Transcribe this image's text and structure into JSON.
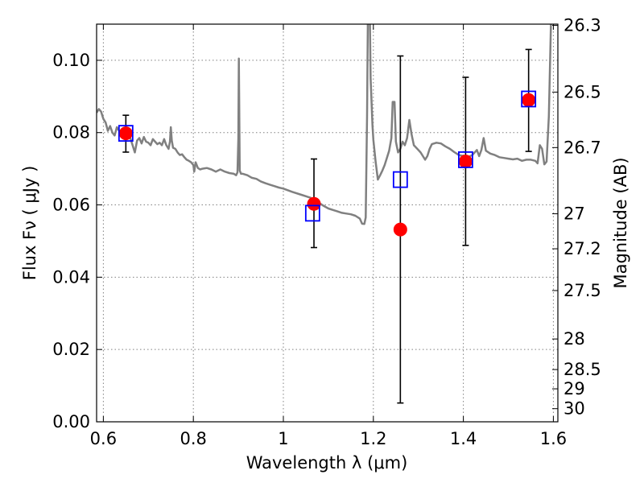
{
  "chart_data": {
    "type": "scatter",
    "xlabel": "Wavelength  λ (μm)",
    "ylabel": "Flux  Fν  ( μJy )",
    "y2label": "Magnitude (AB)",
    "xlim": [
      0.585,
      1.61
    ],
    "ylim": [
      0.0,
      0.11
    ],
    "grid": true,
    "grid_style": "dotted",
    "x_ticks": [
      0.6,
      0.8,
      1.0,
      1.2,
      1.4,
      1.6
    ],
    "x_tick_labels": [
      "0.6",
      "0.8",
      "1",
      "1.2",
      "1.4",
      "1.6"
    ],
    "y_ticks": [
      0.0,
      0.02,
      0.04,
      0.06,
      0.08,
      0.1
    ],
    "y_tick_labels": [
      "0.00",
      "0.02",
      "0.04",
      "0.06",
      "0.08",
      "0.10"
    ],
    "y2_ticks": [
      {
        "label": "26.3",
        "mag": 26.3
      },
      {
        "label": "26.5",
        "mag": 26.5
      },
      {
        "label": "26.7",
        "mag": 26.7
      },
      {
        "label": "27",
        "mag": 27.0
      },
      {
        "label": "27.2",
        "mag": 27.2
      },
      {
        "label": "27.5",
        "mag": 27.5
      },
      {
        "label": "28",
        "mag": 28.0
      },
      {
        "label": "28.5",
        "mag": 28.5
      },
      {
        "label": "29",
        "mag": 29.0
      },
      {
        "label": "30",
        "mag": 30.0
      }
    ],
    "colors": {
      "model_line": "#808080",
      "observed": "#ff0000",
      "model_photometry": "#0000ff",
      "error_bar": "#000000",
      "grid": "#808080"
    },
    "series": [
      {
        "kind": "line",
        "points": [
          [
            0.585,
            0.0855
          ],
          [
            0.59,
            0.0865
          ],
          [
            0.595,
            0.0858
          ],
          [
            0.6,
            0.0838
          ],
          [
            0.605,
            0.0828
          ],
          [
            0.61,
            0.0805
          ],
          [
            0.615,
            0.0818
          ],
          [
            0.62,
            0.08
          ],
          [
            0.625,
            0.0792
          ],
          [
            0.63,
            0.0815
          ],
          [
            0.635,
            0.0805
          ],
          [
            0.64,
            0.0795
          ],
          [
            0.645,
            0.0802
          ],
          [
            0.65,
            0.0798
          ],
          [
            0.655,
            0.079
          ],
          [
            0.66,
            0.0785
          ],
          [
            0.665,
            0.0765
          ],
          [
            0.67,
            0.0745
          ],
          [
            0.675,
            0.0778
          ],
          [
            0.68,
            0.0785
          ],
          [
            0.685,
            0.077
          ],
          [
            0.69,
            0.0788
          ],
          [
            0.695,
            0.0775
          ],
          [
            0.7,
            0.0772
          ],
          [
            0.705,
            0.0765
          ],
          [
            0.71,
            0.0782
          ],
          [
            0.715,
            0.0775
          ],
          [
            0.72,
            0.0768
          ],
          [
            0.725,
            0.0772
          ],
          [
            0.73,
            0.0765
          ],
          [
            0.735,
            0.0782
          ],
          [
            0.74,
            0.0765
          ],
          [
            0.745,
            0.0755
          ],
          [
            0.748,
            0.0775
          ],
          [
            0.75,
            0.0815
          ],
          [
            0.752,
            0.0778
          ],
          [
            0.755,
            0.0758
          ],
          [
            0.76,
            0.0755
          ],
          [
            0.765,
            0.0745
          ],
          [
            0.77,
            0.0738
          ],
          [
            0.775,
            0.074
          ],
          [
            0.78,
            0.0732
          ],
          [
            0.785,
            0.0725
          ],
          [
            0.79,
            0.0722
          ],
          [
            0.795,
            0.0718
          ],
          [
            0.8,
            0.071
          ],
          [
            0.802,
            0.0692
          ],
          [
            0.805,
            0.0718
          ],
          [
            0.81,
            0.0702
          ],
          [
            0.815,
            0.0698
          ],
          [
            0.82,
            0.07
          ],
          [
            0.83,
            0.0702
          ],
          [
            0.84,
            0.0698
          ],
          [
            0.85,
            0.0692
          ],
          [
            0.86,
            0.0698
          ],
          [
            0.87,
            0.0692
          ],
          [
            0.88,
            0.0688
          ],
          [
            0.89,
            0.0686
          ],
          [
            0.895,
            0.0682
          ],
          [
            0.898,
            0.069
          ],
          [
            0.9,
            0.0785
          ],
          [
            0.901,
            0.1005
          ],
          [
            0.903,
            0.0695
          ],
          [
            0.906,
            0.0686
          ],
          [
            0.91,
            0.0686
          ],
          [
            0.92,
            0.0682
          ],
          [
            0.93,
            0.0675
          ],
          [
            0.94,
            0.0672
          ],
          [
            0.95,
            0.0665
          ],
          [
            0.96,
            0.066
          ],
          [
            0.97,
            0.0656
          ],
          [
            0.98,
            0.0652
          ],
          [
            0.99,
            0.0648
          ],
          [
            1.0,
            0.0645
          ],
          [
            1.02,
            0.0636
          ],
          [
            1.04,
            0.0628
          ],
          [
            1.06,
            0.062
          ],
          [
            1.07,
            0.0612
          ],
          [
            1.08,
            0.0605
          ],
          [
            1.09,
            0.0597
          ],
          [
            1.1,
            0.059
          ],
          [
            1.11,
            0.0586
          ],
          [
            1.12,
            0.0582
          ],
          [
            1.13,
            0.0578
          ],
          [
            1.14,
            0.0576
          ],
          [
            1.15,
            0.0574
          ],
          [
            1.16,
            0.057
          ],
          [
            1.17,
            0.0562
          ],
          [
            1.175,
            0.0548
          ],
          [
            1.18,
            0.0547
          ],
          [
            1.183,
            0.0565
          ],
          [
            1.186,
            0.085
          ],
          [
            1.188,
            0.115
          ],
          [
            1.192,
            0.115
          ],
          [
            1.194,
            0.095
          ],
          [
            1.198,
            0.082
          ],
          [
            1.2,
            0.078
          ],
          [
            1.205,
            0.072
          ],
          [
            1.21,
            0.067
          ],
          [
            1.215,
            0.0682
          ],
          [
            1.22,
            0.0695
          ],
          [
            1.225,
            0.071
          ],
          [
            1.23,
            0.073
          ],
          [
            1.235,
            0.075
          ],
          [
            1.24,
            0.0785
          ],
          [
            1.243,
            0.0885
          ],
          [
            1.247,
            0.0885
          ],
          [
            1.25,
            0.0775
          ],
          [
            1.255,
            0.0745
          ],
          [
            1.26,
            0.0755
          ],
          [
            1.265,
            0.0775
          ],
          [
            1.27,
            0.0765
          ],
          [
            1.275,
            0.0785
          ],
          [
            1.28,
            0.0835
          ],
          [
            1.285,
            0.0795
          ],
          [
            1.29,
            0.0765
          ],
          [
            1.3,
            0.0752
          ],
          [
            1.305,
            0.0745
          ],
          [
            1.31,
            0.0735
          ],
          [
            1.315,
            0.0725
          ],
          [
            1.32,
            0.0735
          ],
          [
            1.325,
            0.0755
          ],
          [
            1.33,
            0.0768
          ],
          [
            1.34,
            0.0772
          ],
          [
            1.35,
            0.077
          ],
          [
            1.36,
            0.0762
          ],
          [
            1.37,
            0.0755
          ],
          [
            1.38,
            0.0746
          ],
          [
            1.39,
            0.0738
          ],
          [
            1.4,
            0.0735
          ],
          [
            1.41,
            0.0732
          ],
          [
            1.42,
            0.0738
          ],
          [
            1.43,
            0.0752
          ],
          [
            1.435,
            0.0735
          ],
          [
            1.44,
            0.0752
          ],
          [
            1.445,
            0.0785
          ],
          [
            1.45,
            0.075
          ],
          [
            1.46,
            0.0742
          ],
          [
            1.47,
            0.0738
          ],
          [
            1.48,
            0.0732
          ],
          [
            1.49,
            0.073
          ],
          [
            1.5,
            0.0728
          ],
          [
            1.51,
            0.0726
          ],
          [
            1.52,
            0.0728
          ],
          [
            1.53,
            0.0722
          ],
          [
            1.54,
            0.0725
          ],
          [
            1.55,
            0.0725
          ],
          [
            1.56,
            0.0722
          ],
          [
            1.565,
            0.0715
          ],
          [
            1.57,
            0.0765
          ],
          [
            1.575,
            0.0755
          ],
          [
            1.58,
            0.0712
          ],
          [
            1.585,
            0.072
          ],
          [
            1.59,
            0.0845
          ],
          [
            1.595,
            0.112
          ],
          [
            1.6,
            0.112
          ],
          [
            1.61,
            0.112
          ]
        ]
      },
      {
        "kind": "square",
        "points": [
          {
            "x": 0.65,
            "y": 0.0798
          },
          {
            "x": 1.065,
            "y": 0.0577
          },
          {
            "x": 1.26,
            "y": 0.067
          },
          {
            "x": 1.405,
            "y": 0.0725
          },
          {
            "x": 1.545,
            "y": 0.0893
          }
        ]
      },
      {
        "kind": "circle",
        "points": [
          {
            "x": 0.65,
            "y": 0.0798,
            "yerr_low": 0.0746,
            "yerr_high": 0.0848
          },
          {
            "x": 1.068,
            "y": 0.0603,
            "yerr_low": 0.0482,
            "yerr_high": 0.0727
          },
          {
            "x": 1.26,
            "y": 0.0532,
            "yerr_low": 0.0052,
            "yerr_high": 0.1012
          },
          {
            "x": 1.405,
            "y": 0.072,
            "yerr_low": 0.0488,
            "yerr_high": 0.0953
          },
          {
            "x": 1.545,
            "y": 0.089,
            "yerr_low": 0.0748,
            "yerr_high": 0.103
          }
        ]
      }
    ]
  }
}
